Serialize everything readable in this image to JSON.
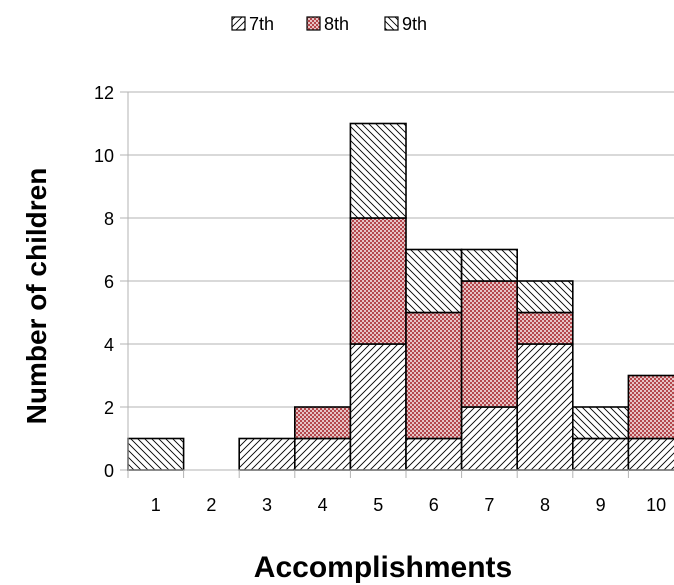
{
  "chart_data": {
    "type": "bar",
    "stacked": true,
    "categories": [
      "1",
      "2",
      "3",
      "4",
      "5",
      "6",
      "7",
      "8",
      "9",
      "10"
    ],
    "series": [
      {
        "name": "7th",
        "values": [
          0,
          0,
          1,
          1,
          4,
          1,
          2,
          4,
          1,
          1
        ]
      },
      {
        "name": "8th",
        "values": [
          0,
          0,
          0,
          1,
          4,
          4,
          4,
          1,
          0,
          2
        ]
      },
      {
        "name": "9th",
        "values": [
          1,
          0,
          0,
          0,
          3,
          2,
          1,
          1,
          1,
          0
        ]
      }
    ],
    "xlabel": "Accomplishments",
    "ylabel": "Number of children",
    "ylim": [
      0,
      12
    ],
    "yticks": [
      0,
      2,
      4,
      6,
      8,
      10,
      12
    ],
    "grid": true,
    "legend_position": "top-center",
    "colors": {
      "8th_fill": "#e6c3c5",
      "8th_pattern": "#b4474c"
    }
  }
}
